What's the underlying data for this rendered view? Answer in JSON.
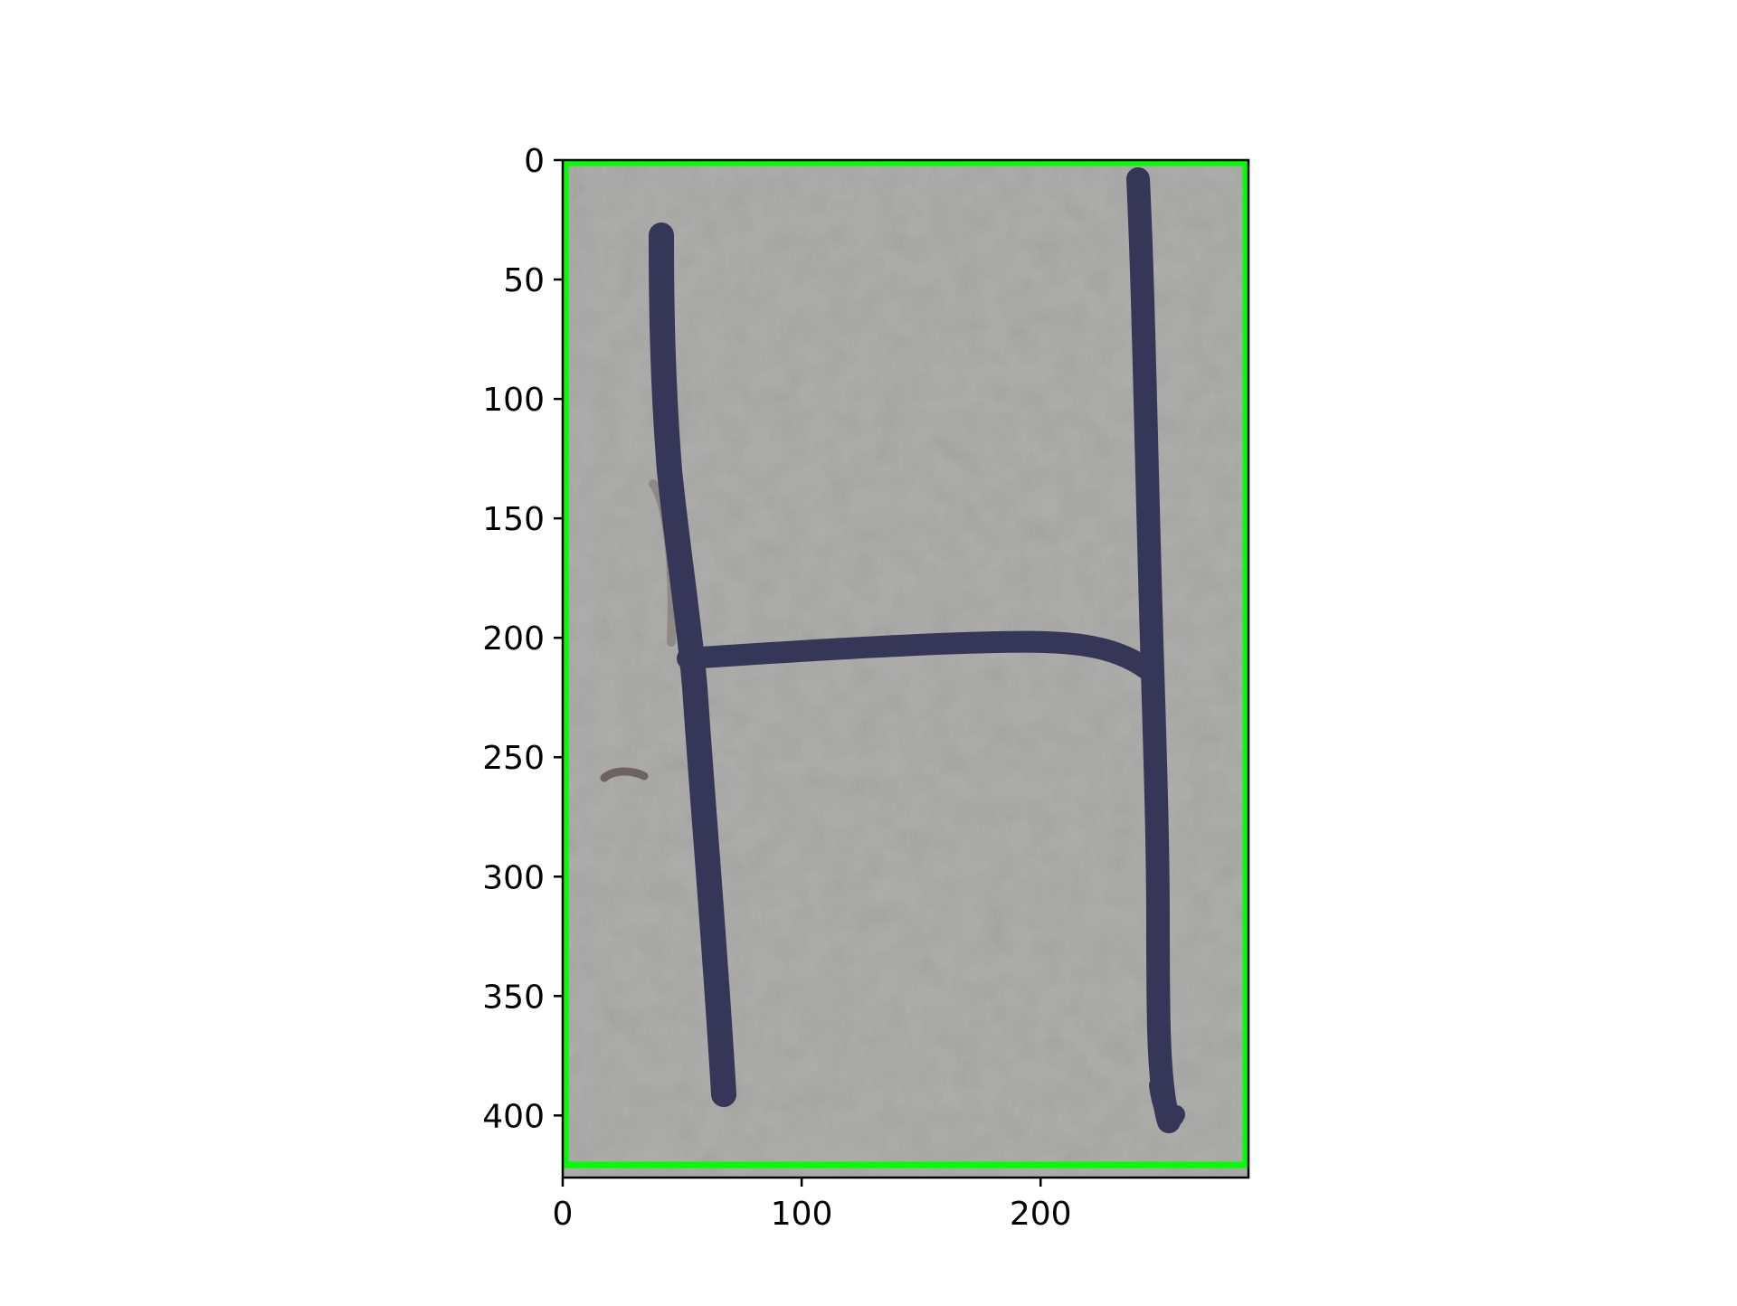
{
  "figure": {
    "type": "image-with-axes",
    "subject": "handwritten letter",
    "letter": "H",
    "colors": {
      "background": "#ffffff",
      "paper": "#a9a9a7",
      "stroke_ink": "#363658",
      "bounding_box": "#00ff00",
      "axes": "#000000"
    }
  },
  "axes": {
    "y_ticks": [
      "0",
      "50",
      "100",
      "150",
      "200",
      "250",
      "300",
      "350",
      "400"
    ],
    "x_ticks": [
      "0",
      "100",
      "200"
    ],
    "xlim": [
      0,
      287
    ],
    "ylim": [
      426,
      0
    ],
    "y_inverted": true
  },
  "bounding_box": {
    "color": "#00ff00",
    "x_range": [
      0,
      286
    ],
    "y_range": [
      0,
      418
    ]
  }
}
